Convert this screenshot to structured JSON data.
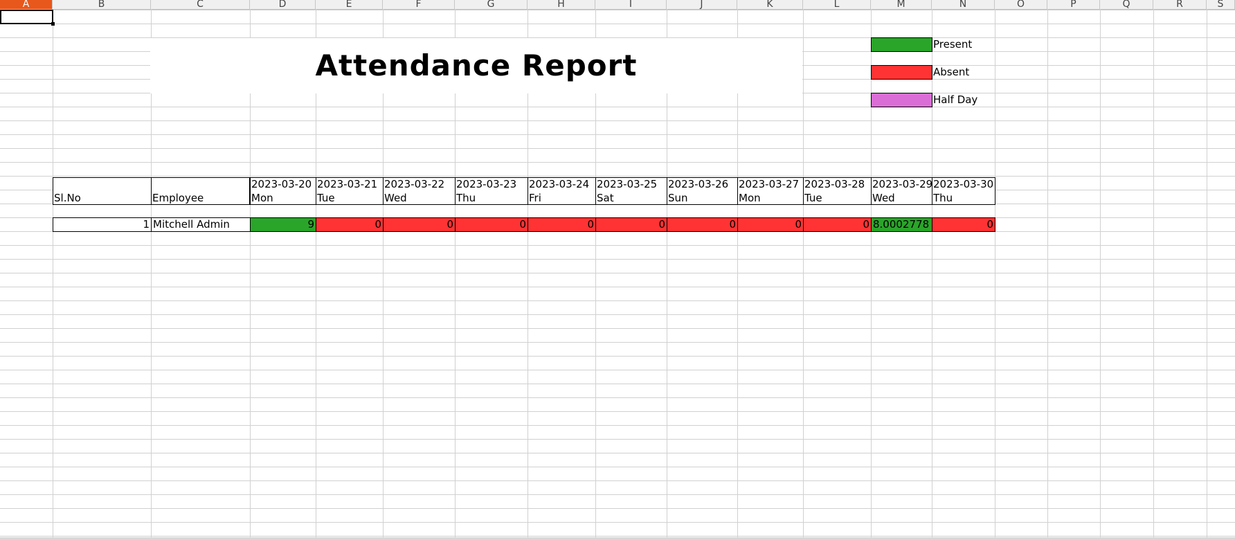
{
  "sheet": {
    "columns": [
      "A",
      "B",
      "C",
      "D",
      "E",
      "F",
      "G",
      "H",
      "I",
      "J",
      "K",
      "L",
      "M",
      "N",
      "O",
      "P",
      "Q",
      "R",
      "S"
    ],
    "active_column": "A",
    "title": "Attendance Report",
    "legend": [
      {
        "label": "Present",
        "color": "#2aa52a"
      },
      {
        "label": "Absent",
        "color": "#ff3333"
      },
      {
        "label": "Half Day",
        "color": "#db6dd6"
      }
    ],
    "table": {
      "sl_header": "Sl.No",
      "employee_header": "Employee",
      "dates": [
        {
          "date": "2023-03-20",
          "day": "Mon"
        },
        {
          "date": "2023-03-21",
          "day": "Tue"
        },
        {
          "date": "2023-03-22",
          "day": "Wed"
        },
        {
          "date": "2023-03-23",
          "day": "Thu"
        },
        {
          "date": "2023-03-24",
          "day": "Fri"
        },
        {
          "date": "2023-03-25",
          "day": "Sat"
        },
        {
          "date": "2023-03-26",
          "day": "Sun"
        },
        {
          "date": "2023-03-27",
          "day": "Mon"
        },
        {
          "date": "2023-03-28",
          "day": "Tue"
        },
        {
          "date": "2023-03-29",
          "day": "Wed"
        },
        {
          "date": "2023-03-30",
          "day": "Thu"
        }
      ],
      "rows": [
        {
          "sl": "1",
          "employee": "Mitchell Admin",
          "values": [
            {
              "value": "9",
              "status": "present"
            },
            {
              "value": "0",
              "status": "absent"
            },
            {
              "value": "0",
              "status": "absent"
            },
            {
              "value": "0",
              "status": "absent"
            },
            {
              "value": "0",
              "status": "absent"
            },
            {
              "value": "0",
              "status": "absent"
            },
            {
              "value": "0",
              "status": "absent"
            },
            {
              "value": "0",
              "status": "absent"
            },
            {
              "value": "0",
              "status": "absent"
            },
            {
              "value": "8.0002778",
              "status": "present"
            },
            {
              "value": "0",
              "status": "absent"
            }
          ]
        }
      ]
    }
  }
}
